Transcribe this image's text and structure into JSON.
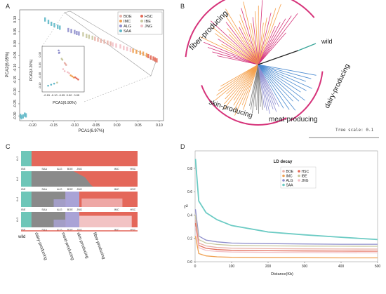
{
  "panels": {
    "a": "A",
    "b": "B",
    "c": "C",
    "d": "D"
  },
  "colors": {
    "BOE": "#e8b1a9",
    "HSC": "#e36a58",
    "IMC": "#f0a050",
    "IBE": "#c8c8a0",
    "ALG": "#8e8ecc",
    "JNG": "#f2c0c6",
    "SAA": "#5fb8c8",
    "fiber": "#d6337a",
    "skin": "#f5a04a",
    "meat": "#8c8cd0",
    "dairy": "#4a8ad0",
    "wild": "#3aa59a",
    "gray": "#7c7c7c",
    "struct_red": "#e4675a",
    "struct_teal": "#6ec6b8",
    "struct_gray": "#8a8a8a",
    "struct_purple": "#a9a3d6",
    "struct_pink": "#f2c3c4",
    "ld_teal": "#6ccbc4"
  },
  "chart_data": [
    {
      "type": "scatter",
      "panel": "A",
      "xlabel": "PCA1(6.97%)",
      "ylabel": "PCA2(6.05%)",
      "xticks": [
        "-0.20",
        "-0.15",
        "-0.10",
        "-0.05",
        "0.00",
        "0.05",
        "0.10"
      ],
      "yticks": [
        "0.10",
        "0.05",
        "0.00",
        "-0.05",
        "-0.10",
        "-0.15",
        "-0.20",
        "-0.25",
        "-0.30"
      ],
      "xlim": [
        -0.23,
        0.11
      ],
      "ylim": [
        -0.32,
        0.14
      ],
      "legend": [
        "BOE",
        "HSC",
        "IMC",
        "IBE",
        "ALG",
        "JNG",
        "SAA"
      ],
      "legend_position": "top-right",
      "groups": [
        {
          "name": "SAA",
          "points": [
            [
              -0.228,
              -0.3
            ],
            [
              -0.222,
              -0.302
            ],
            [
              -0.215,
              -0.298
            ],
            [
              -0.226,
              -0.306
            ],
            [
              -0.218,
              -0.295
            ],
            [
              -0.17,
              0.1
            ],
            [
              -0.162,
              0.09
            ],
            [
              -0.155,
              0.082
            ],
            [
              -0.148,
              0.076
            ],
            [
              -0.14,
              0.07
            ],
            [
              -0.135,
              0.066
            ]
          ]
        },
        {
          "name": "ALG",
          "points": [
            [
              -0.115,
              0.056
            ],
            [
              -0.108,
              0.052
            ],
            [
              -0.1,
              0.048
            ],
            [
              -0.095,
              0.044
            ],
            [
              -0.09,
              0.042
            ]
          ]
        },
        {
          "name": "IBE",
          "points": [
            [
              -0.08,
              0.038
            ],
            [
              -0.072,
              0.032
            ],
            [
              -0.066,
              0.028
            ],
            [
              -0.058,
              0.024
            ]
          ]
        },
        {
          "name": "BOE",
          "points": [
            [
              -0.052,
              0.02
            ],
            [
              -0.045,
              0.016
            ],
            [
              -0.038,
              0.012
            ],
            [
              -0.03,
              0.008
            ],
            [
              -0.022,
              0.004
            ],
            [
              -0.015,
              0.0
            ]
          ]
        },
        {
          "name": "JNG",
          "points": [
            [
              -0.01,
              -0.004
            ],
            [
              -0.002,
              -0.008
            ],
            [
              0.008,
              -0.012
            ],
            [
              0.016,
              -0.018
            ],
            [
              0.024,
              -0.022
            ],
            [
              0.032,
              -0.026
            ]
          ]
        },
        {
          "name": "IMC",
          "points": [
            [
              0.038,
              -0.03
            ],
            [
              0.046,
              -0.034
            ],
            [
              0.055,
              -0.038
            ],
            [
              0.062,
              -0.042
            ],
            [
              0.07,
              -0.048
            ]
          ]
        },
        {
          "name": "HSC",
          "points": [
            [
              0.074,
              -0.052
            ],
            [
              0.08,
              -0.058
            ],
            [
              0.086,
              -0.062
            ],
            [
              0.09,
              -0.066
            ],
            [
              0.094,
              -0.07
            ]
          ]
        }
      ],
      "inset": {
        "xlabel": "PCA1(6.90%)",
        "ylabel": "PCA2(4.20%)",
        "xticks": [
          "-0.15",
          "-0.10",
          "-0.05",
          "0.00",
          "0.05"
        ],
        "yticks": [
          "0.05",
          "0.00",
          "-0.05",
          "-0.10"
        ]
      }
    },
    {
      "type": "tree",
      "panel": "B",
      "labels": [
        "fiber-producing",
        "wild",
        "skin-producing",
        "meat-producing",
        "dairy-producing"
      ],
      "scale_label": "Tree scale: 0.1"
    },
    {
      "type": "bar",
      "panel": "C",
      "subtype": "stacked-admixture",
      "rows": [
        "K=2",
        "K=3",
        "K=4",
        "K=5"
      ],
      "pop_labels": [
        "IBE",
        "SAA",
        "ALG",
        "BOE",
        "JNG",
        "IMC",
        "HSC"
      ],
      "group_labels": [
        "wild",
        "dairy-producing",
        "meat-producing",
        "skin-producing",
        "fiber-producing"
      ]
    },
    {
      "type": "line",
      "panel": "D",
      "title": "LD decay",
      "xlabel": "Distance(Kb)",
      "ylabel": "r²",
      "xticks": [
        "0",
        "100",
        "200",
        "300",
        "400",
        "500"
      ],
      "yticks": [
        "0.0",
        "0.2",
        "0.4",
        "0.6",
        "0.8"
      ],
      "xlim": [
        0,
        500
      ],
      "ylim": [
        0,
        0.95
      ],
      "legend": [
        "BOE",
        "HSC",
        "IMC",
        "IBE",
        "ALG",
        "JNG",
        "SAA"
      ],
      "legend_position": "top-right",
      "series": [
        {
          "name": "SAA",
          "x": [
            1,
            10,
            30,
            60,
            100,
            200,
            300,
            400,
            500
          ],
          "values": [
            0.88,
            0.52,
            0.42,
            0.36,
            0.31,
            0.255,
            0.23,
            0.21,
            0.19
          ]
        },
        {
          "name": "ALG",
          "x": [
            1,
            10,
            30,
            60,
            100,
            200,
            300,
            400,
            500
          ],
          "values": [
            0.45,
            0.22,
            0.185,
            0.17,
            0.16,
            0.155,
            0.152,
            0.15,
            0.15
          ]
        },
        {
          "name": "IBE",
          "x": [
            1,
            10,
            30,
            60,
            100,
            200,
            300,
            400,
            500
          ],
          "values": [
            0.4,
            0.19,
            0.16,
            0.148,
            0.14,
            0.136,
            0.134,
            0.133,
            0.132
          ]
        },
        {
          "name": "BOE",
          "x": [
            1,
            10,
            30,
            60,
            100,
            200,
            300,
            400,
            500
          ],
          "values": [
            0.36,
            0.16,
            0.135,
            0.122,
            0.116,
            0.112,
            0.11,
            0.109,
            0.108
          ]
        },
        {
          "name": "HSC",
          "x": [
            1,
            10,
            30,
            60,
            100,
            200,
            300,
            400,
            500
          ],
          "values": [
            0.33,
            0.14,
            0.115,
            0.104,
            0.098,
            0.094,
            0.092,
            0.091,
            0.09
          ]
        },
        {
          "name": "JNG",
          "x": [
            1,
            10,
            30,
            60,
            100,
            200,
            300,
            400,
            500
          ],
          "values": [
            0.3,
            0.12,
            0.097,
            0.088,
            0.083,
            0.08,
            0.078,
            0.077,
            0.076
          ]
        },
        {
          "name": "IMC",
          "x": [
            1,
            10,
            30,
            60,
            100,
            200,
            300,
            400,
            500
          ],
          "values": [
            0.22,
            0.07,
            0.05,
            0.042,
            0.038,
            0.035,
            0.034,
            0.033,
            0.033
          ]
        }
      ]
    }
  ]
}
